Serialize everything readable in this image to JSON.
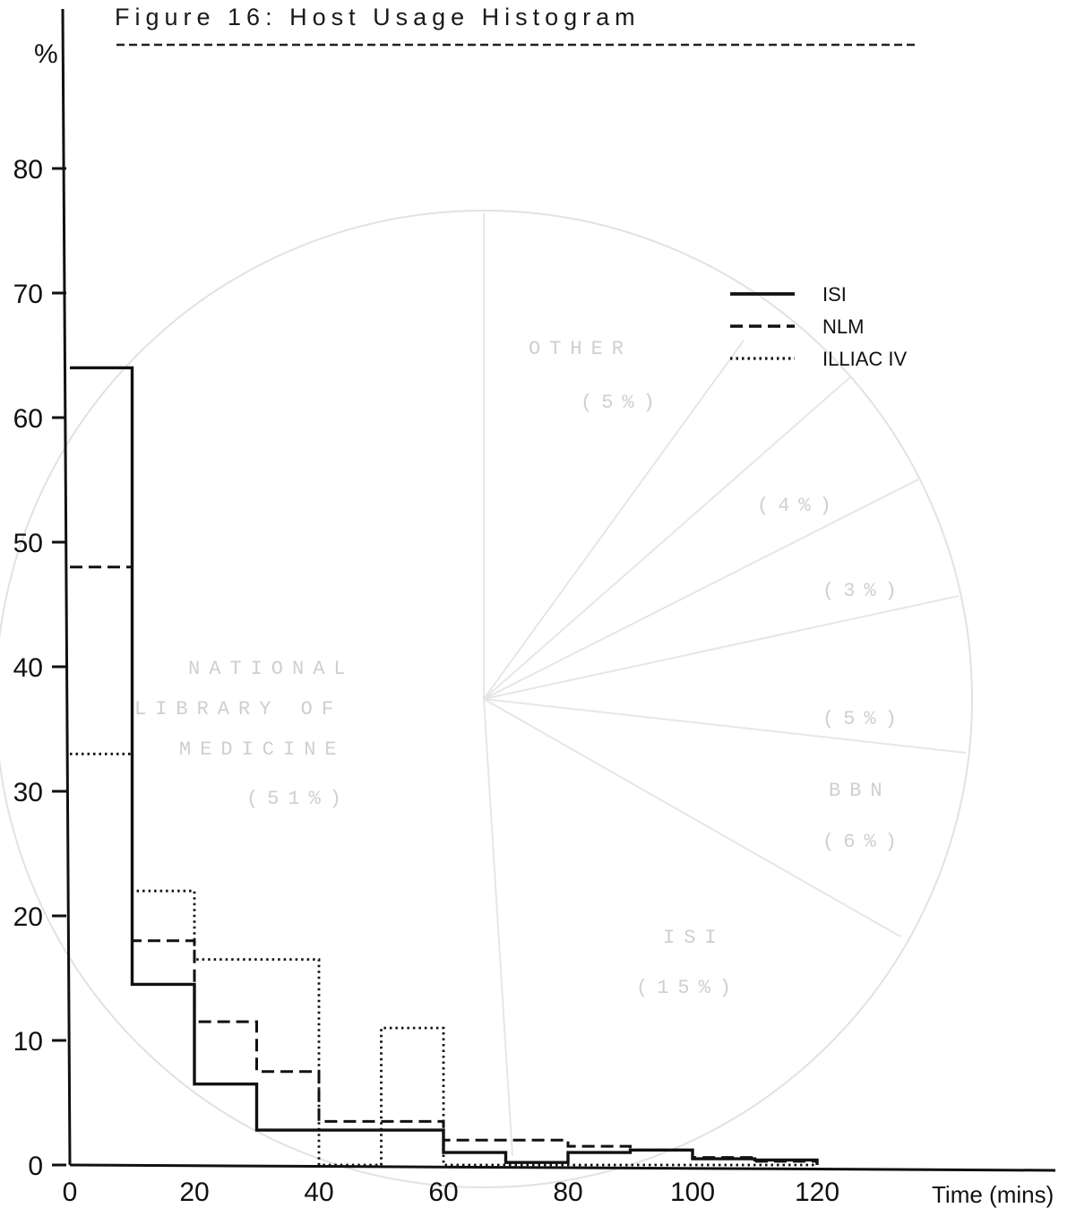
{
  "chart_data": {
    "type": "line",
    "title": "Figure 16: Host Usage Histogram",
    "xlabel": "Time (mins)",
    "ylabel": "%",
    "xlim": [
      0,
      158
    ],
    "ylim": [
      0,
      90
    ],
    "x_ticks": [
      0,
      20,
      40,
      60,
      80,
      100,
      120
    ],
    "y_ticks": [
      0,
      10,
      20,
      30,
      40,
      50,
      60,
      70,
      80
    ],
    "legend_position": "top-right",
    "series": [
      {
        "name": "ISI",
        "style": "solid",
        "bins": [
          [
            0,
            10,
            64
          ],
          [
            10,
            20,
            14.5
          ],
          [
            20,
            30,
            6.5
          ],
          [
            30,
            40,
            2.8
          ],
          [
            40,
            60,
            2.8
          ],
          [
            60,
            70,
            1
          ],
          [
            70,
            80,
            0.2
          ],
          [
            80,
            90,
            1
          ],
          [
            90,
            100,
            1.2
          ],
          [
            100,
            110,
            0.5
          ],
          [
            110,
            120,
            0.4
          ]
        ]
      },
      {
        "name": "NLM",
        "style": "dashed",
        "bins": [
          [
            0,
            10,
            48
          ],
          [
            10,
            20,
            18
          ],
          [
            20,
            30,
            11.5
          ],
          [
            30,
            40,
            7.5
          ],
          [
            40,
            60,
            3.5
          ],
          [
            60,
            80,
            2
          ],
          [
            80,
            90,
            1.5
          ],
          [
            90,
            100,
            1.2
          ],
          [
            100,
            110,
            0.6
          ],
          [
            110,
            120,
            0.3
          ]
        ]
      },
      {
        "name": "ILLIAC IV",
        "style": "dotted",
        "bins": [
          [
            0,
            10,
            33
          ],
          [
            10,
            20,
            22
          ],
          [
            20,
            40,
            16.5
          ],
          [
            40,
            50,
            0
          ],
          [
            50,
            60,
            11
          ],
          [
            60,
            120,
            0
          ]
        ]
      }
    ]
  },
  "background_watermark": {
    "labels": [
      "NATIONAL",
      "LIBRARY OF",
      "MEDICINE",
      "(51%)",
      "OTHER",
      "(5%)",
      "ISI",
      "(15%)",
      "BBN",
      "(6%)",
      "(5%)",
      "(4%)",
      "(3%)"
    ]
  },
  "colors": {
    "ink": "#111111",
    "watermark": "#d4d4d4",
    "background": "#ffffff"
  }
}
